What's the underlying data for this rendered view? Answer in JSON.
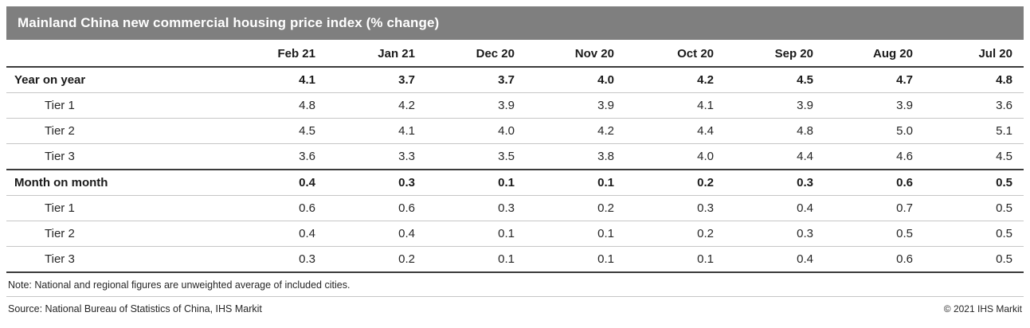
{
  "title": "Mainland China new commercial housing price index (% change)",
  "colors": {
    "title_bar_bg": "#7f7f7f",
    "title_bar_text": "#ffffff",
    "body_text": "#262626",
    "rule_dark": "#3b3b3b",
    "rule_light": "#c6c6c6"
  },
  "table": {
    "columns": [
      "Feb 21",
      "Jan 21",
      "Dec 20",
      "Nov 20",
      "Oct 20",
      "Sep 20",
      "Aug 20",
      "Jul 20"
    ],
    "rows": [
      {
        "label": "Year on year",
        "bold": true,
        "indent": false,
        "values": [
          "4.1",
          "3.7",
          "3.7",
          "4.0",
          "4.2",
          "4.5",
          "4.7",
          "4.8"
        ]
      },
      {
        "label": "Tier 1",
        "bold": false,
        "indent": true,
        "values": [
          "4.8",
          "4.2",
          "3.9",
          "3.9",
          "4.1",
          "3.9",
          "3.9",
          "3.6"
        ]
      },
      {
        "label": "Tier 2",
        "bold": false,
        "indent": true,
        "values": [
          "4.5",
          "4.1",
          "4.0",
          "4.2",
          "4.4",
          "4.8",
          "5.0",
          "5.1"
        ]
      },
      {
        "label": "Tier 3",
        "bold": false,
        "indent": true,
        "values": [
          "3.6",
          "3.3",
          "3.5",
          "3.8",
          "4.0",
          "4.4",
          "4.6",
          "4.5"
        ]
      },
      {
        "label": "Month on month",
        "bold": true,
        "indent": false,
        "values": [
          "0.4",
          "0.3",
          "0.1",
          "0.1",
          "0.2",
          "0.3",
          "0.6",
          "0.5"
        ]
      },
      {
        "label": "Tier 1",
        "bold": false,
        "indent": true,
        "values": [
          "0.6",
          "0.6",
          "0.3",
          "0.2",
          "0.3",
          "0.4",
          "0.7",
          "0.5"
        ]
      },
      {
        "label": "Tier 2",
        "bold": false,
        "indent": true,
        "values": [
          "0.4",
          "0.4",
          "0.1",
          "0.1",
          "0.2",
          "0.3",
          "0.5",
          "0.5"
        ]
      },
      {
        "label": "Tier 3",
        "bold": false,
        "indent": true,
        "values": [
          "0.3",
          "0.2",
          "0.1",
          "0.1",
          "0.1",
          "0.4",
          "0.6",
          "0.5"
        ]
      }
    ]
  },
  "footer": {
    "note": "Note: National and regional figures are unweighted average of included cities.",
    "source": "Source: National Bureau of Statistics of China, IHS Markit",
    "copyright": "© 2021 IHS Markit"
  },
  "chart_data": {
    "type": "table",
    "title": "Mainland China new commercial housing price index (% change)",
    "categories": [
      "Feb 21",
      "Jan 21",
      "Dec 20",
      "Nov 20",
      "Oct 20",
      "Sep 20",
      "Aug 20",
      "Jul 20"
    ],
    "series": [
      {
        "name": "Year on year",
        "values": [
          4.1,
          3.7,
          3.7,
          4.0,
          4.2,
          4.5,
          4.7,
          4.8
        ]
      },
      {
        "name": "Year on year - Tier 1",
        "values": [
          4.8,
          4.2,
          3.9,
          3.9,
          4.1,
          3.9,
          3.9,
          3.6
        ]
      },
      {
        "name": "Year on year - Tier 2",
        "values": [
          4.5,
          4.1,
          4.0,
          4.2,
          4.4,
          4.8,
          5.0,
          5.1
        ]
      },
      {
        "name": "Year on year - Tier 3",
        "values": [
          3.6,
          3.3,
          3.5,
          3.8,
          4.0,
          4.4,
          4.6,
          4.5
        ]
      },
      {
        "name": "Month on month",
        "values": [
          0.4,
          0.3,
          0.1,
          0.1,
          0.2,
          0.3,
          0.6,
          0.5
        ]
      },
      {
        "name": "Month on month - Tier 1",
        "values": [
          0.6,
          0.6,
          0.3,
          0.2,
          0.3,
          0.4,
          0.7,
          0.5
        ]
      },
      {
        "name": "Month on month - Tier 2",
        "values": [
          0.4,
          0.4,
          0.1,
          0.1,
          0.2,
          0.3,
          0.5,
          0.5
        ]
      },
      {
        "name": "Month on month - Tier 3",
        "values": [
          0.3,
          0.2,
          0.1,
          0.1,
          0.1,
          0.4,
          0.6,
          0.5
        ]
      }
    ],
    "note": "Note: National and regional figures are unweighted average of included cities.",
    "source": "Source: National Bureau of Statistics of China, IHS Markit"
  }
}
